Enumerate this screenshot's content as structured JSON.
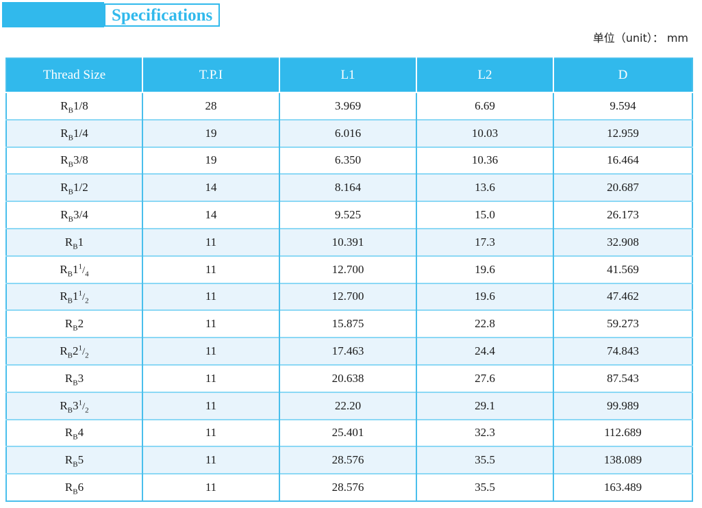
{
  "title": {
    "label": "Specifications"
  },
  "unit_note": "单位（unit）： mm",
  "colors": {
    "accent": "#31B9EC",
    "row_alternate": "#E8F4FC",
    "border_horizontal": "#8BD8F5",
    "border_vertical": "#49BFEC",
    "header_text": "#FFFFFF",
    "body_text": "#1A1A1A"
  },
  "table": {
    "columns": [
      "Thread Size",
      "T.P.I",
      "L1",
      "L2",
      "D"
    ],
    "rows": [
      {
        "thread": {
          "symbol": "R",
          "subscript": "B",
          "size": "1/8"
        },
        "tpi": "28",
        "l1": "3.969",
        "l2": "6.69",
        "d": "9.594"
      },
      {
        "thread": {
          "symbol": "R",
          "subscript": "B",
          "size": "1/4"
        },
        "tpi": "19",
        "l1": "6.016",
        "l2": "10.03",
        "d": "12.959"
      },
      {
        "thread": {
          "symbol": "R",
          "subscript": "B",
          "size": "3/8"
        },
        "tpi": "19",
        "l1": "6.350",
        "l2": "10.36",
        "d": "16.464"
      },
      {
        "thread": {
          "symbol": "R",
          "subscript": "B",
          "size": "1/2"
        },
        "tpi": "14",
        "l1": "8.164",
        "l2": "13.6",
        "d": "20.687"
      },
      {
        "thread": {
          "symbol": "R",
          "subscript": "B",
          "size": "3/4"
        },
        "tpi": "14",
        "l1": "9.525",
        "l2": "15.0",
        "d": "26.173"
      },
      {
        "thread": {
          "symbol": "R",
          "subscript": "B",
          "size": "1"
        },
        "tpi": "11",
        "l1": "10.391",
        "l2": "17.3",
        "d": "32.908"
      },
      {
        "thread": {
          "symbol": "R",
          "subscript": "B",
          "size": "1",
          "frac": "1/4"
        },
        "tpi": "11",
        "l1": "12.700",
        "l2": "19.6",
        "d": "41.569"
      },
      {
        "thread": {
          "symbol": "R",
          "subscript": "B",
          "size": "1",
          "frac": "1/2"
        },
        "tpi": "11",
        "l1": "12.700",
        "l2": "19.6",
        "d": "47.462"
      },
      {
        "thread": {
          "symbol": "R",
          "subscript": "B",
          "size": "2"
        },
        "tpi": "11",
        "l1": "15.875",
        "l2": "22.8",
        "d": "59.273"
      },
      {
        "thread": {
          "symbol": "R",
          "subscript": "B",
          "size": "2",
          "frac": "1/2"
        },
        "tpi": "11",
        "l1": "17.463",
        "l2": "24.4",
        "d": "74.843"
      },
      {
        "thread": {
          "symbol": "R",
          "subscript": "B",
          "size": "3"
        },
        "tpi": "11",
        "l1": "20.638",
        "l2": "27.6",
        "d": "87.543"
      },
      {
        "thread": {
          "symbol": "R",
          "subscript": "B",
          "size": "3",
          "frac": "1/2"
        },
        "tpi": "11",
        "l1": "22.20",
        "l2": "29.1",
        "d": "99.989"
      },
      {
        "thread": {
          "symbol": "R",
          "subscript": "B",
          "size": "4"
        },
        "tpi": "11",
        "l1": "25.401",
        "l2": "32.3",
        "d": "112.689"
      },
      {
        "thread": {
          "symbol": "R",
          "subscript": "B",
          "size": "5"
        },
        "tpi": "11",
        "l1": "28.576",
        "l2": "35.5",
        "d": "138.089"
      },
      {
        "thread": {
          "symbol": "R",
          "subscript": "B",
          "size": "6"
        },
        "tpi": "11",
        "l1": "28.576",
        "l2": "35.5",
        "d": "163.489"
      }
    ]
  }
}
